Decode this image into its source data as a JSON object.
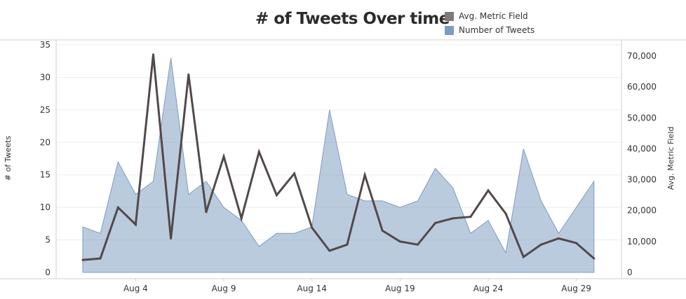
{
  "chart_data": {
    "type": "area",
    "title": "# of Tweets Over time",
    "ylabel": "# of Tweets",
    "y2label": "Avg. Metric Field",
    "ylim": [
      0,
      35
    ],
    "y2lim": [
      0,
      75000
    ],
    "yticks": [
      0,
      5,
      10,
      15,
      20,
      25,
      30,
      35
    ],
    "y2ticks": [
      0,
      10000,
      20000,
      30000,
      40000,
      50000,
      60000,
      70000
    ],
    "y2tick_labels": [
      "0",
      "10,000",
      "20,000",
      "30,000",
      "40,000",
      "50,000",
      "60,000",
      "70,000"
    ],
    "xtick_labels": [
      "Aug 4",
      "Aug 9",
      "Aug 14",
      "Aug 19",
      "Aug 24",
      "Aug 29"
    ],
    "xtick_days": [
      4,
      9,
      14,
      19,
      24,
      29
    ],
    "grid": true,
    "legend_position": "top-right",
    "x": [
      "Aug 1",
      "Aug 2",
      "Aug 3",
      "Aug 4",
      "Aug 5",
      "Aug 6",
      "Aug 7",
      "Aug 8",
      "Aug 9",
      "Aug 10",
      "Aug 11",
      "Aug 12",
      "Aug 13",
      "Aug 14",
      "Aug 15",
      "Aug 16",
      "Aug 17",
      "Aug 18",
      "Aug 19",
      "Aug 20",
      "Aug 21",
      "Aug 22",
      "Aug 23",
      "Aug 24",
      "Aug 25",
      "Aug 26",
      "Aug 27",
      "Aug 28",
      "Aug 29",
      "Aug 30"
    ],
    "x_days": [
      1,
      2,
      3,
      4,
      5,
      6,
      7,
      8,
      9,
      10,
      11,
      12,
      13,
      14,
      15,
      16,
      17,
      18,
      19,
      20,
      21,
      22,
      23,
      24,
      25,
      26,
      27,
      28,
      29,
      30
    ],
    "series": [
      {
        "name": "Number of Tweets",
        "kind": "area",
        "axis": "left",
        "color": "#7d9cc0",
        "values": [
          7,
          6,
          17,
          12,
          14,
          33,
          12,
          14,
          10,
          8,
          4,
          6,
          6,
          7,
          25,
          12,
          11,
          11,
          10,
          11,
          16,
          13,
          6,
          8,
          3,
          19,
          11,
          6,
          10,
          14
        ]
      },
      {
        "name": "Avg. Metric Field",
        "kind": "line",
        "axis": "right",
        "color": "#52494a",
        "values": [
          4000,
          4500,
          21000,
          15500,
          70500,
          11000,
          64000,
          19500,
          37500,
          17500,
          39000,
          25000,
          32000,
          14500,
          7000,
          9000,
          31500,
          13500,
          10000,
          9000,
          16000,
          17500,
          18000,
          26500,
          19000,
          5000,
          9000,
          11000,
          9500,
          4500
        ]
      }
    ]
  }
}
